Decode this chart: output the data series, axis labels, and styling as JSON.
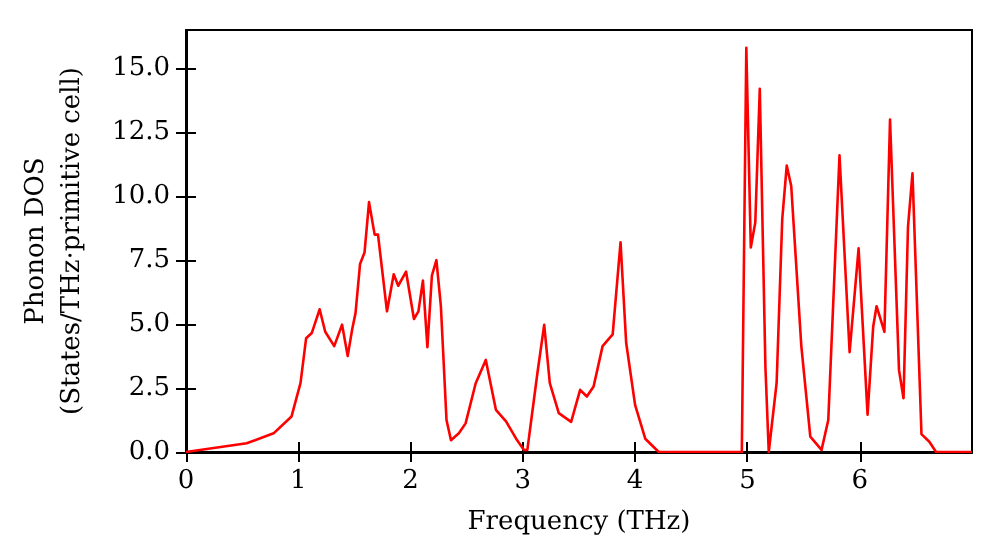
{
  "chart_data": {
    "type": "line",
    "xlabel": "Frequency (THz)",
    "ylabel": "Phonon DOS\n(States/THz·primitive cell)",
    "xlim": [
      0,
      7
    ],
    "xticks": [
      0,
      1,
      2,
      3,
      4,
      5,
      6
    ],
    "ylim": [
      0,
      16.5
    ],
    "yticks": [
      {
        "value": 0,
        "label": "0.0"
      },
      {
        "value": 2.5,
        "label": "2.5"
      },
      {
        "value": 5,
        "label": "5.0"
      },
      {
        "value": 7.5,
        "label": "7.5"
      },
      {
        "value": 10,
        "label": "10.0"
      },
      {
        "value": 12.5,
        "label": "12.5"
      },
      {
        "value": 15,
        "label": "15.0"
      }
    ],
    "grid": false,
    "marker": "none",
    "line_style": "solid",
    "series": [
      {
        "color": "#ff0000",
        "x": [
          0,
          0.54,
          0.78,
          0.94,
          1.02,
          1.07,
          1.12,
          1.19,
          1.24,
          1.32,
          1.39,
          1.44,
          1.48,
          1.51,
          1.55,
          1.59,
          1.63,
          1.68,
          1.71,
          1.79,
          1.85,
          1.89,
          1.96,
          2.03,
          2.07,
          2.11,
          2.15,
          2.19,
          2.23,
          2.27,
          2.32,
          2.36,
          2.43,
          2.49,
          2.58,
          2.67,
          2.76,
          2.85,
          2.94,
          3.01,
          3.04,
          3.13,
          3.19,
          3.24,
          3.32,
          3.43,
          3.51,
          3.57,
          3.63,
          3.71,
          3.8,
          3.87,
          3.92,
          4.0,
          4.09,
          4.21,
          4.95,
          4.99,
          5.03,
          5.07,
          5.11,
          5.16,
          5.19,
          5.26,
          5.31,
          5.35,
          5.39,
          5.48,
          5.56,
          5.66,
          5.72,
          5.82,
          5.91,
          5.99,
          6.07,
          6.12,
          6.15,
          6.22,
          6.27,
          6.35,
          6.39,
          6.43,
          6.47,
          6.55,
          6.62,
          6.68,
          7.0
        ],
        "values": [
          0,
          0.34,
          0.73,
          1.39,
          2.7,
          4.45,
          4.65,
          5.58,
          4.7,
          4.14,
          4.98,
          3.75,
          4.8,
          5.44,
          7.35,
          7.8,
          9.77,
          8.5,
          8.5,
          5.5,
          6.95,
          6.5,
          7.05,
          5.2,
          5.5,
          6.7,
          4.1,
          6.9,
          7.5,
          5.7,
          1.25,
          0.46,
          0.73,
          1.12,
          2.69,
          3.6,
          1.65,
          1.2,
          0.52,
          0.08,
          0.08,
          3.1,
          4.97,
          2.69,
          1.52,
          1.18,
          2.43,
          2.17,
          2.56,
          4.14,
          4.6,
          8.2,
          4.27,
          1.83,
          0.52,
          0,
          0,
          15.8,
          8.0,
          8.97,
          14.2,
          3.35,
          0,
          2.7,
          9.1,
          11.2,
          10.4,
          4.14,
          0.6,
          0.08,
          1.25,
          11.6,
          3.9,
          7.96,
          1.46,
          4.9,
          5.7,
          4.7,
          13.0,
          3.2,
          2.1,
          8.8,
          10.9,
          0.7,
          0.4,
          0,
          0
        ]
      }
    ]
  }
}
